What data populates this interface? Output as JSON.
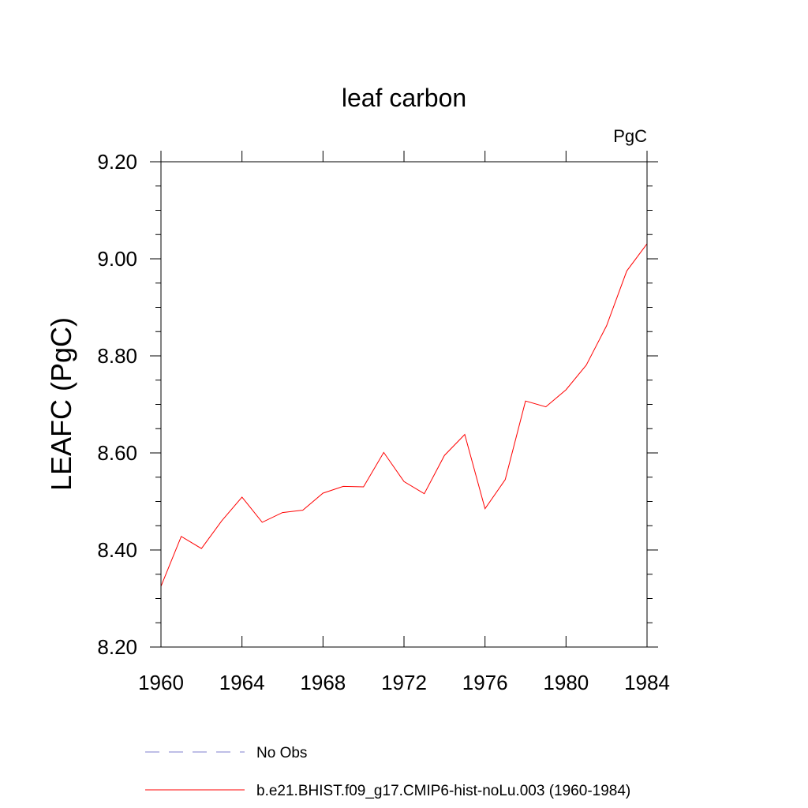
{
  "chart_data": {
    "type": "line",
    "title": "leaf carbon",
    "units": "PgC",
    "ylabel": "LEAFC  (PgC)",
    "xlabel": "",
    "xlim": [
      1960,
      1984
    ],
    "ylim": [
      8.2,
      9.2
    ],
    "x_ticks": [
      1960,
      1964,
      1968,
      1972,
      1976,
      1980,
      1984
    ],
    "x_tick_labels": [
      "1960",
      "1964",
      "1968",
      "1972",
      "1976",
      "1980",
      "1984"
    ],
    "y_ticks": [
      8.2,
      8.4,
      8.6,
      8.8,
      9.0,
      9.2
    ],
    "y_tick_labels": [
      "8.20",
      "8.40",
      "8.60",
      "8.80",
      "9.00",
      "9.20"
    ],
    "grid": false,
    "legend_position": "bottom",
    "series": [
      {
        "name": "b.e21.BHIST.f09_g17.CMIP6-hist-noLu.003 (1960-1984)",
        "color": "#ff0000",
        "dash": "solid",
        "x": [
          1960,
          1961,
          1962,
          1963,
          1964,
          1965,
          1966,
          1967,
          1968,
          1969,
          1970,
          1971,
          1972,
          1973,
          1974,
          1975,
          1976,
          1977,
          1978,
          1979,
          1980,
          1981,
          1982,
          1983,
          1984
        ],
        "values": [
          8.325,
          8.428,
          8.403,
          8.46,
          8.509,
          8.457,
          8.477,
          8.482,
          8.517,
          8.531,
          8.53,
          8.601,
          8.541,
          8.516,
          8.595,
          8.638,
          8.485,
          8.545,
          8.707,
          8.695,
          8.73,
          8.781,
          8.862,
          8.975,
          9.031
        ]
      }
    ],
    "legend": [
      {
        "label": "No Obs",
        "color": "#7f7fcf",
        "dash": "dashed"
      },
      {
        "label": "b.e21.BHIST.f09_g17.CMIP6-hist-noLu.003 (1960-1984)",
        "color": "#ff0000",
        "dash": "solid"
      }
    ]
  }
}
